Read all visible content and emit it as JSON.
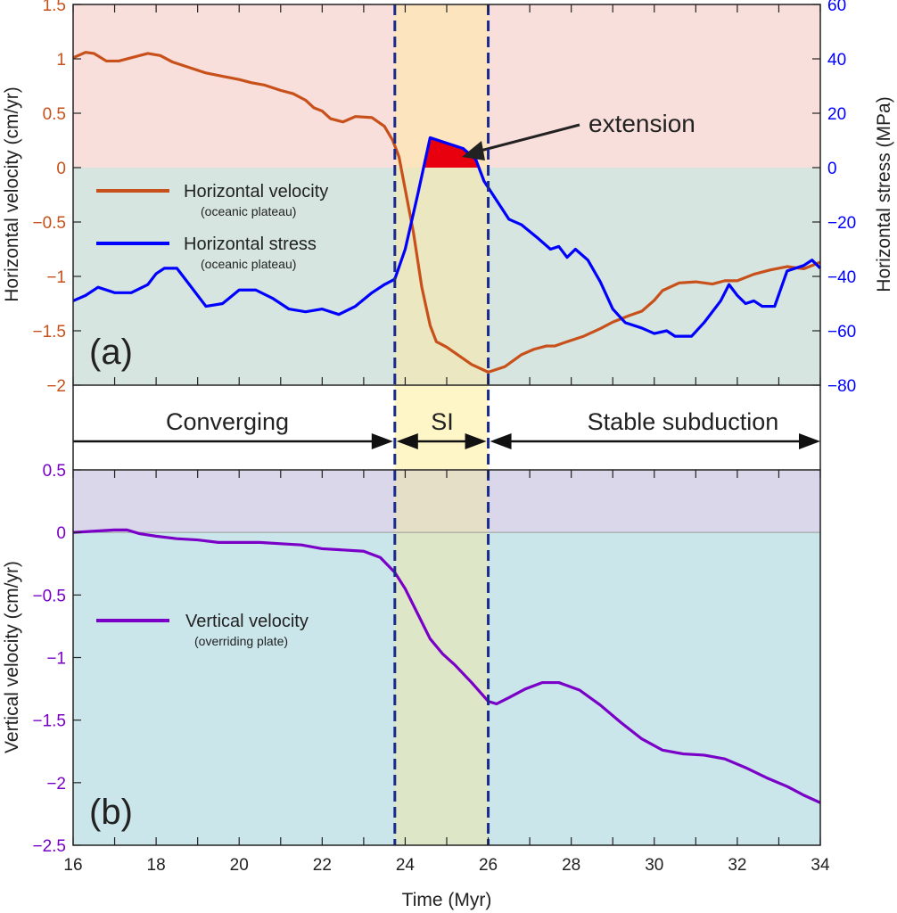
{
  "chart_data": [
    {
      "type": "line",
      "panel_label": "(a)",
      "xlim": [
        16,
        34
      ],
      "x_ticks": [
        "16",
        "18",
        "20",
        "22",
        "24",
        "26",
        "28",
        "30",
        "32",
        "34"
      ],
      "y_left": {
        "label": "Horizontal velocity (cm/yr)",
        "lim": [
          -2,
          1.5
        ],
        "ticks": [
          "−2",
          "−1.5",
          "−1",
          "−0.5",
          "0",
          "0.5",
          "1",
          "1.5"
        ],
        "color": "#c8501a"
      },
      "y_right": {
        "label": "Horizontal stress (MPa)",
        "lim": [
          -80,
          60
        ],
        "ticks": [
          "−80",
          "−60",
          "−40",
          "−20",
          "0",
          "20",
          "40",
          "60"
        ],
        "color": "#0000ff"
      },
      "background": {
        "positive": "#f9dfdc",
        "negative": "#d7e5e0"
      },
      "annotation": "extension",
      "series": [
        {
          "name": "Horizontal velocity",
          "subtitle": "(oceanic plateau)",
          "axis": "left",
          "color": "#c8501a",
          "x": [
            16.0,
            16.3,
            16.5,
            16.8,
            17.1,
            17.5,
            17.8,
            18.1,
            18.4,
            18.8,
            19.2,
            19.6,
            20.0,
            20.3,
            20.6,
            21.0,
            21.3,
            21.6,
            21.8,
            22.0,
            22.2,
            22.5,
            22.8,
            23.2,
            23.5,
            23.7,
            23.85,
            24.0,
            24.2,
            24.4,
            24.6,
            24.75,
            25.0,
            25.3,
            25.6,
            26.0,
            26.4,
            26.8,
            27.1,
            27.4,
            27.6,
            27.9,
            28.3,
            28.7,
            29.0,
            29.4,
            29.7,
            30.0,
            30.2,
            30.6,
            31.0,
            31.4,
            31.7,
            32.0,
            32.4,
            32.8,
            33.2,
            33.6,
            34.0
          ],
          "y": [
            1.01,
            1.06,
            1.05,
            0.98,
            0.98,
            1.02,
            1.05,
            1.03,
            0.97,
            0.92,
            0.87,
            0.84,
            0.81,
            0.78,
            0.76,
            0.71,
            0.68,
            0.62,
            0.55,
            0.52,
            0.45,
            0.42,
            0.47,
            0.46,
            0.38,
            0.25,
            0.1,
            -0.2,
            -0.6,
            -1.1,
            -1.45,
            -1.6,
            -1.65,
            -1.73,
            -1.81,
            -1.88,
            -1.83,
            -1.72,
            -1.67,
            -1.64,
            -1.64,
            -1.6,
            -1.55,
            -1.48,
            -1.42,
            -1.36,
            -1.32,
            -1.22,
            -1.13,
            -1.06,
            -1.05,
            -1.07,
            -1.04,
            -1.04,
            -0.98,
            -0.94,
            -0.91,
            -0.93,
            -0.87
          ]
        },
        {
          "name": "Horizontal stress",
          "subtitle": "(oceanic plateau)",
          "axis": "right",
          "color": "#0000ff",
          "x": [
            16.0,
            16.3,
            16.6,
            17.0,
            17.4,
            17.8,
            18.0,
            18.2,
            18.5,
            18.8,
            19.2,
            19.6,
            20.0,
            20.4,
            20.8,
            21.2,
            21.6,
            22.0,
            22.4,
            22.8,
            23.2,
            23.5,
            23.75,
            24.0,
            24.3,
            24.6,
            25.0,
            25.4,
            25.7,
            25.9,
            26.2,
            26.5,
            26.8,
            27.2,
            27.5,
            27.7,
            27.9,
            28.1,
            28.4,
            28.7,
            29.0,
            29.3,
            29.7,
            30.0,
            30.3,
            30.5,
            30.9,
            31.2,
            31.6,
            31.8,
            32.0,
            32.2,
            32.4,
            32.6,
            32.9,
            33.2,
            33.6,
            33.8,
            34.0
          ],
          "y": [
            -49,
            -47,
            -44,
            -46,
            -46,
            -43,
            -39,
            -37,
            -37,
            -43,
            -51,
            -50,
            -45,
            -45,
            -48,
            -52,
            -53,
            -52,
            -54,
            -51,
            -46,
            -43,
            -41,
            -30,
            -10,
            11,
            9,
            7,
            3,
            -5,
            -12,
            -19,
            -21,
            -26,
            -30,
            -29,
            -33,
            -30,
            -34,
            -42,
            -52,
            -57,
            -59,
            -61,
            -60,
            -62,
            -62,
            -57,
            -49,
            -43,
            -47,
            -50,
            -49,
            -51,
            -51,
            -38,
            -36,
            -34,
            -37
          ]
        }
      ]
    },
    {
      "type": "line",
      "panel_label": "(b)",
      "xlim": [
        16,
        34
      ],
      "xlabel": "Time (Myr)",
      "x_ticks": [
        "16",
        "18",
        "20",
        "22",
        "24",
        "26",
        "28",
        "30",
        "32",
        "34"
      ],
      "y_left": {
        "label": "Vertical velocity (cm/yr)",
        "lim": [
          -2.5,
          0.5
        ],
        "ticks": [
          "−2.5",
          "−2",
          "−1.5",
          "−1",
          "−0.5",
          "0",
          "0.5"
        ],
        "color": "#7a00c8"
      },
      "background": {
        "positive": "#dad7ea",
        "negative": "#cae6ea"
      },
      "series": [
        {
          "name": "Vertical velocity",
          "subtitle": "(overriding plate)",
          "color": "#7a00c8",
          "x": [
            16,
            16.5,
            17,
            17.3,
            17.6,
            18,
            18.5,
            19,
            19.5,
            20,
            20.5,
            21,
            21.5,
            22,
            22.5,
            23,
            23.4,
            23.75,
            24,
            24.3,
            24.6,
            24.9,
            25.2,
            25.6,
            26,
            26.2,
            26.5,
            26.9,
            27.3,
            27.7,
            28.2,
            28.7,
            29.2,
            29.7,
            30.2,
            30.7,
            31.2,
            31.7,
            32.2,
            32.7,
            33.2,
            33.6,
            34
          ],
          "y": [
            0,
            0.01,
            0.02,
            0.02,
            -0.01,
            -0.03,
            -0.05,
            -0.06,
            -0.08,
            -0.08,
            -0.08,
            -0.09,
            -0.1,
            -0.13,
            -0.14,
            -0.15,
            -0.2,
            -0.32,
            -0.45,
            -0.65,
            -0.85,
            -0.97,
            -1.06,
            -1.2,
            -1.35,
            -1.37,
            -1.32,
            -1.25,
            -1.2,
            -1.2,
            -1.26,
            -1.38,
            -1.52,
            -1.65,
            -1.74,
            -1.77,
            -1.78,
            -1.81,
            -1.88,
            -1.96,
            -2.03,
            -2.1,
            -2.16
          ]
        }
      ]
    }
  ],
  "phases": {
    "boundaries": [
      23.75,
      26.0
    ],
    "labels": [
      "Converging",
      "SI",
      "Stable subduction"
    ],
    "si_color": "#fff6c8",
    "boundary_color": "#1a2a8c"
  }
}
